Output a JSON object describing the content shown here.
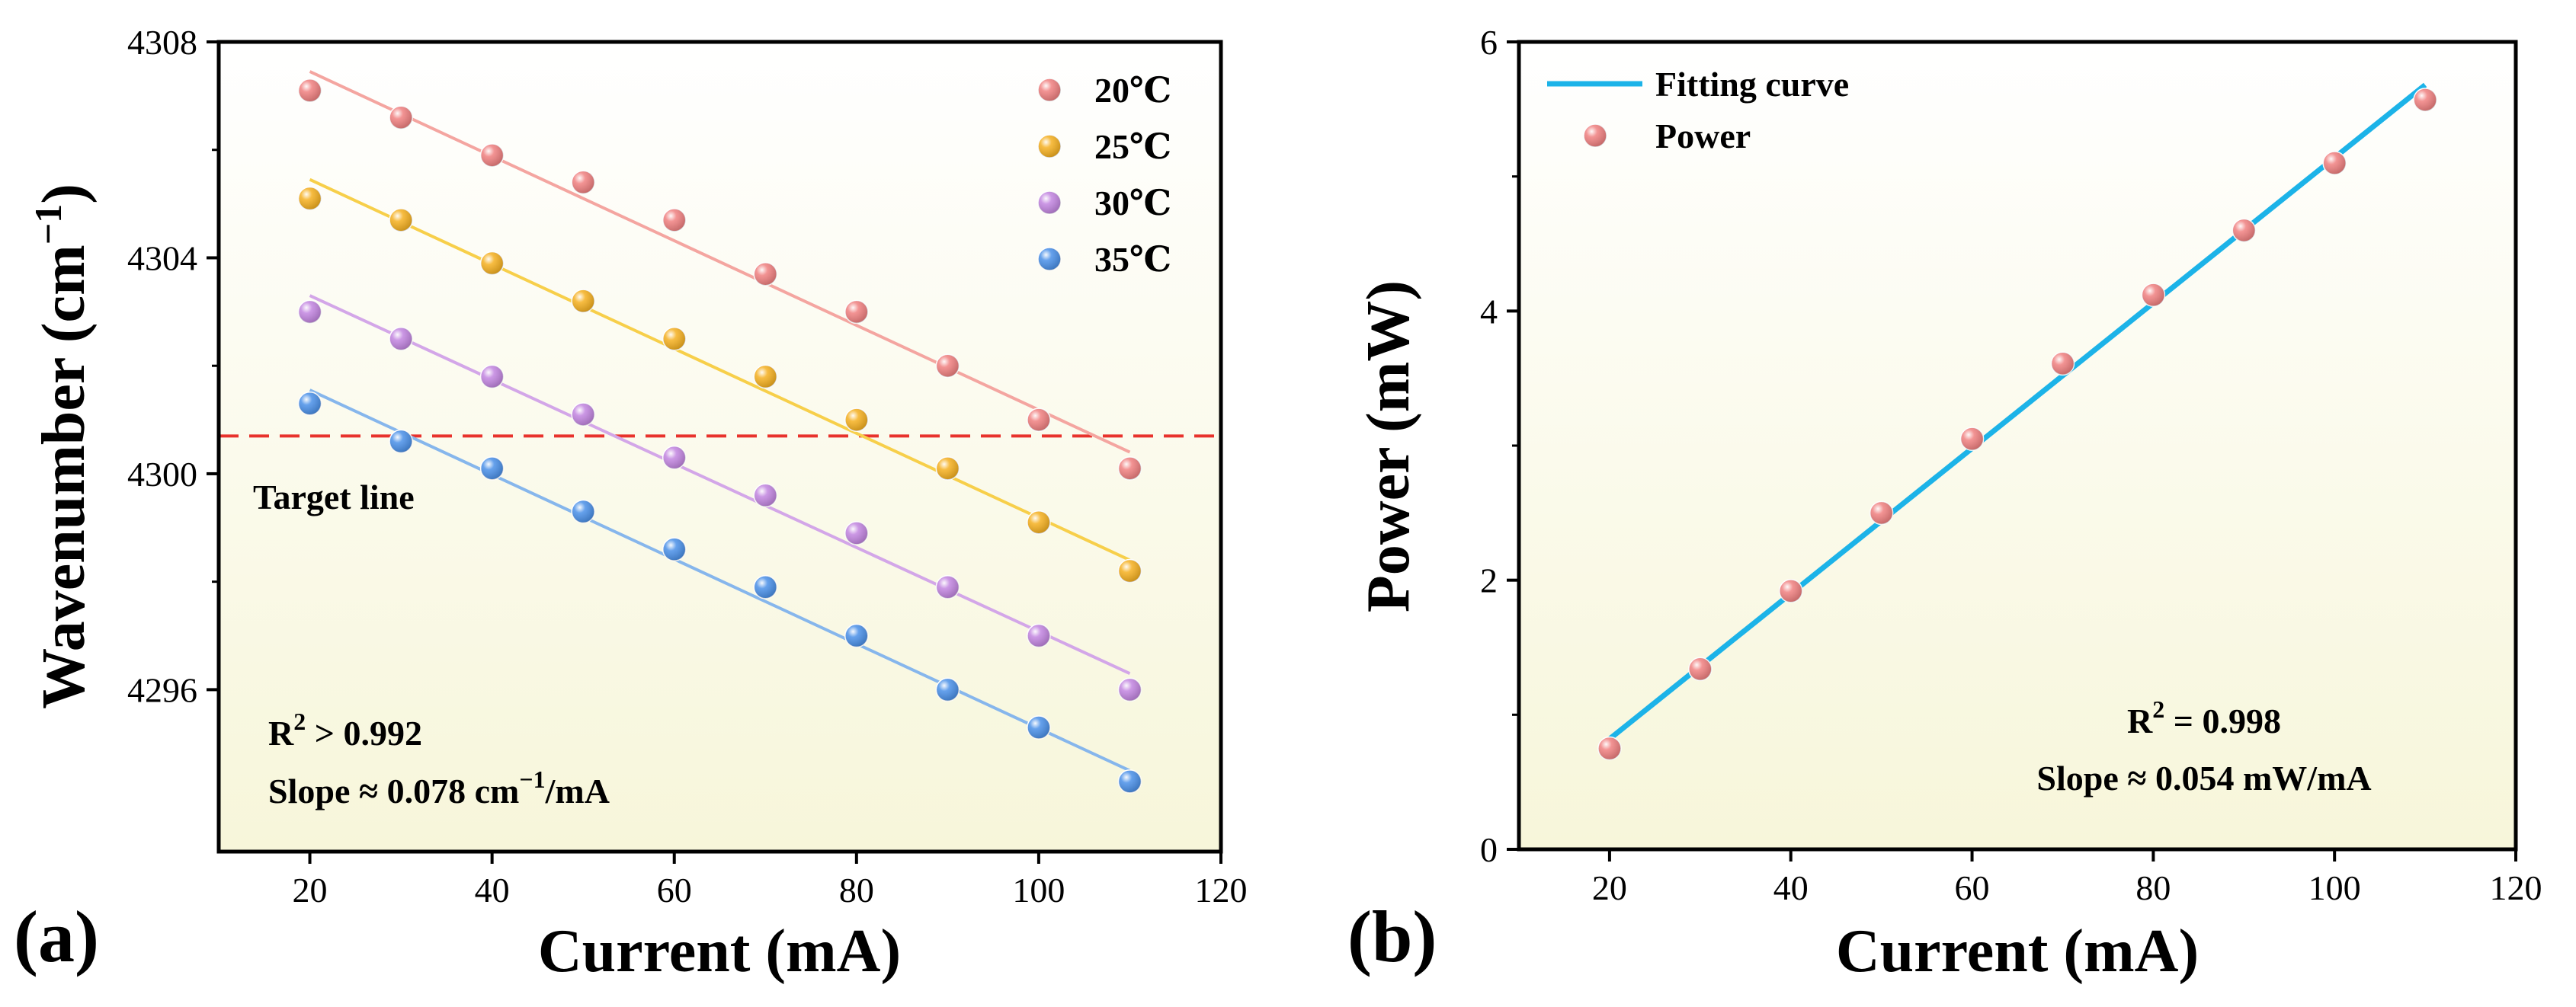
{
  "chart_data": [
    {
      "type": "scatter",
      "panel_label": "(a)",
      "xlabel": "Current (mA)",
      "ylabel_main": "Wavenumber (cm",
      "ylabel_sup": "−1",
      "ylabel_close": ")",
      "xlim": [
        10,
        120
      ],
      "ylim": [
        4293,
        4308
      ],
      "xticks": [
        20,
        40,
        60,
        80,
        100,
        120
      ],
      "yticks": [
        4296,
        4300,
        4304,
        4308
      ],
      "x": [
        20,
        30,
        40,
        50,
        60,
        70,
        80,
        90,
        100,
        110
      ],
      "series": [
        {
          "name": "20℃",
          "color": "#f08080",
          "line_color": "#f4a5a0",
          "values": [
            4307.1,
            4306.6,
            4305.9,
            4305.4,
            4304.7,
            4303.7,
            4303.0,
            4302.0,
            4301.0,
            4300.1
          ],
          "fit": [
            [
              20,
              4307.45
            ],
            [
              110,
              4300.4
            ]
          ]
        },
        {
          "name": "25℃",
          "color": "#f5b020",
          "line_color": "#f7cf4a",
          "values": [
            4305.1,
            4304.7,
            4303.9,
            4303.2,
            4302.5,
            4301.8,
            4301.0,
            4300.1,
            4299.1,
            4298.2
          ],
          "fit": [
            [
              20,
              4305.45
            ],
            [
              110,
              4298.4
            ]
          ]
        },
        {
          "name": "30℃",
          "color": "#c285e0",
          "line_color": "#d3a6e8",
          "values": [
            4303.0,
            4302.5,
            4301.8,
            4301.1,
            4300.3,
            4299.6,
            4298.9,
            4297.9,
            4297.0,
            4296.0
          ],
          "fit": [
            [
              20,
              4303.3
            ],
            [
              110,
              4296.3
            ]
          ]
        },
        {
          "name": "35℃",
          "color": "#4a90e8",
          "line_color": "#86b6ec",
          "values": [
            4301.3,
            4300.6,
            4300.1,
            4299.3,
            4298.6,
            4297.9,
            4297.0,
            4296.0,
            4295.3,
            4294.3
          ],
          "fit": [
            [
              20,
              4301.55
            ],
            [
              110,
              4294.5
            ]
          ]
        }
      ],
      "hline": {
        "y": 4300.7,
        "label": "Target line",
        "color": "#e8322c"
      },
      "annotations": {
        "r2_prefix": "R",
        "r2_sup": "2",
        "r2_suffix": " > 0.992",
        "slope_prefix": "Slope ≈ 0.078 cm",
        "slope_sup": "−1",
        "slope_suffix": "/mA"
      },
      "legend_position": "top-right",
      "background_gradient": [
        "#ffffff",
        "#f7f6da"
      ]
    },
    {
      "type": "scatter",
      "panel_label": "(b)",
      "xlabel": "Current (mA)",
      "ylabel": "Power (mW)",
      "xlim": [
        10,
        120
      ],
      "ylim": [
        0,
        6
      ],
      "xticks": [
        20,
        40,
        60,
        80,
        100,
        120
      ],
      "yticks": [
        0,
        2,
        4,
        6
      ],
      "x": [
        20,
        30,
        40,
        50,
        60,
        70,
        80,
        90,
        100,
        110
      ],
      "series": [
        {
          "name": "Power",
          "color": "#f08080",
          "values": [
            0.75,
            1.34,
            1.92,
            2.5,
            3.05,
            3.61,
            4.12,
            4.6,
            5.1,
            5.57
          ]
        }
      ],
      "fit": {
        "name": "Fitting curve",
        "color": "#1cb3e8",
        "points": [
          [
            20,
            0.82
          ],
          [
            110,
            5.68
          ]
        ]
      },
      "annotations": {
        "r2_prefix": "R",
        "r2_sup": "2",
        "r2_suffix": " = 0.998",
        "slope": "Slope ≈ 0.054 mW/mA"
      },
      "legend_position": "top-left",
      "background_gradient": [
        "#ffffff",
        "#f7f6da"
      ]
    }
  ]
}
